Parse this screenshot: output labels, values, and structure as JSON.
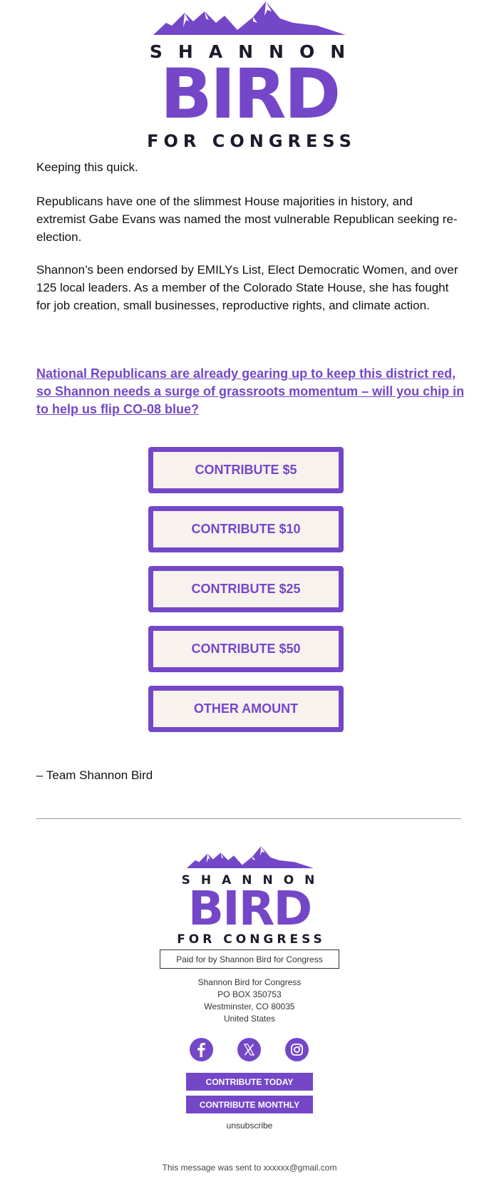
{
  "brand": {
    "name_top": "SHANNON",
    "name_main": "BIRD",
    "name_bottom": "FOR CONGRESS",
    "accent_color": "#7447c8",
    "dark_color": "#1c1a2b"
  },
  "email": {
    "paragraphs": [
      "Keeping this quick.",
      "Republicans have one of the slimmest House majorities in history, and extremist Gabe Evans was named the most vulnerable Republican seeking re-election.",
      "Shannon’s been endorsed by EMILYs List, Elect Democratic Women, and over 125 local leaders. As a member of the Colorado State House, she has fought for job creation, small businesses, reproductive rights, and climate action."
    ],
    "cta_link": "National Republicans are already gearing up to keep this district red, so Shannon needs a surge of grassroots momentum – will you chip in to help us flip CO-08 blue?",
    "buttons": [
      "CONTRIBUTE $5",
      "CONTRIBUTE $10",
      "CONTRIBUTE $25",
      "CONTRIBUTE $50",
      "OTHER AMOUNT"
    ],
    "signoff": "– Team Shannon Bird"
  },
  "footer": {
    "paid_for": "Paid for by Shannon Bird for Congress",
    "address": [
      "Shannon Bird for Congress",
      "PO BOX 350753",
      "Westminster, CO 80035",
      "United States"
    ],
    "social_icons": [
      "facebook-icon",
      "x-icon",
      "instagram-icon"
    ],
    "contribute_today": "CONTRIBUTE TODAY",
    "contribute_monthly": "CONTRIBUTE MONTHLY",
    "unsubscribe": "unsubscribe",
    "sent_to": "This message was sent to xxxxxx@gmail.com"
  }
}
